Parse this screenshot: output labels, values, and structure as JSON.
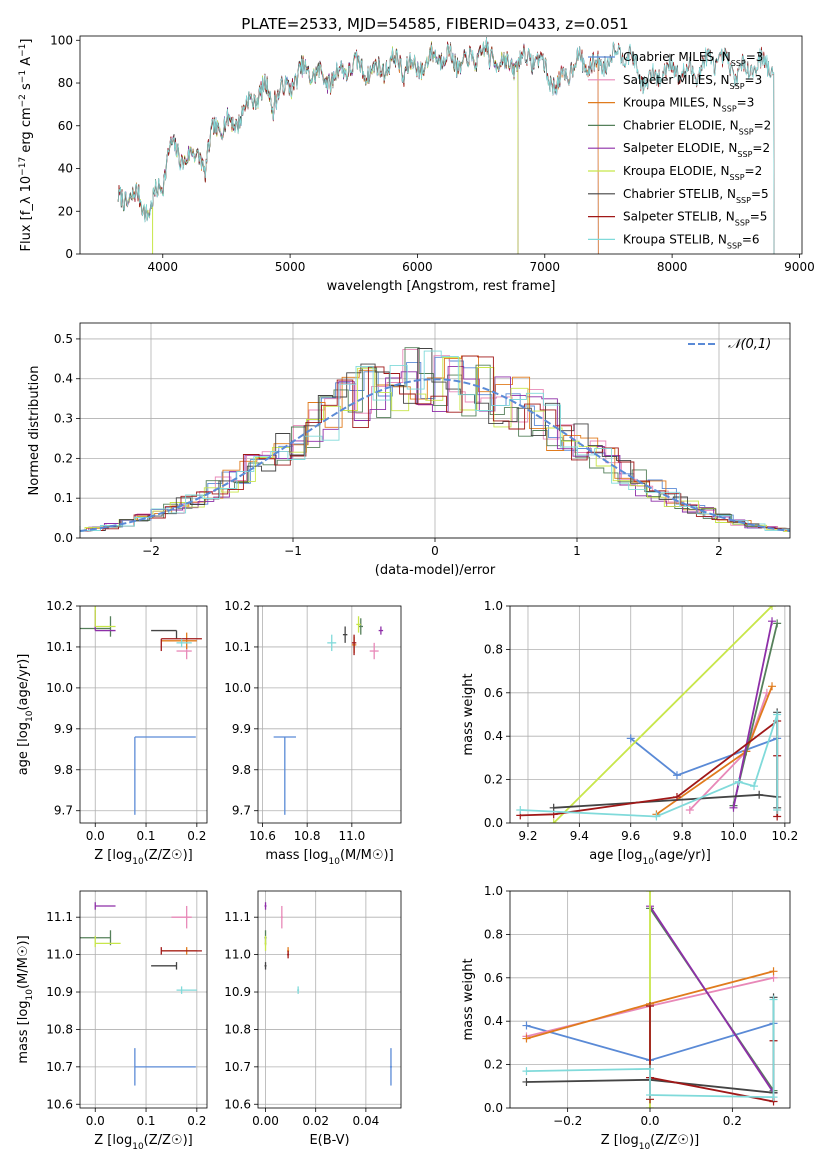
{
  "figure": {
    "title": "PLATE=2533, MJD=54585, FIBERID=0433, z=0.051"
  },
  "chart_data": [
    {
      "id": "spectrum",
      "type": "line",
      "xlabel": "wavelength [Angstrom, rest frame]",
      "ylabel": "Flux [f_λ 10^-17 erg cm^-2 s^-1 A^-1]",
      "xlim": [
        3350,
        9020
      ],
      "ylim": [
        0,
        102
      ],
      "xticks": [
        4000,
        5000,
        6000,
        7000,
        8000,
        9000
      ],
      "yticks": [
        0,
        20,
        40,
        60,
        80,
        100
      ],
      "grid": false,
      "legend_position": "top-right",
      "series": [
        {
          "name": "Chabrier MILES, N_SSP=3",
          "color": "#5a8ad6",
          "x_end": 7420
        },
        {
          "name": "Salpeter MILES, N_SSP=3",
          "color": "#e888b8",
          "x_end": 7420
        },
        {
          "name": "Kroupa MILES, N_SSP=3",
          "color": "#e07b1d",
          "x_end": 7420
        },
        {
          "name": "Chabrier ELODIE, N_SSP=2",
          "color": "#55805a",
          "x_end": 6790
        },
        {
          "name": "Salpeter ELODIE, N_SSP=2",
          "color": "#8e2fa8",
          "x_end": 6790
        },
        {
          "name": "Kroupa ELODIE, N_SSP=2",
          "color": "#c8e64a",
          "x_end": 6790
        },
        {
          "name": "Chabrier STELIB, N_SSP=5",
          "color": "#444444",
          "x_end": 8800
        },
        {
          "name": "Salpeter STELIB, N_SSP=5",
          "color": "#a01818",
          "x_end": 8800
        },
        {
          "name": "Kroupa STELIB, N_SSP=6",
          "color": "#80dada",
          "x_end": 8800
        }
      ],
      "continuum": {
        "x": [
          3650,
          3800,
          3900,
          4000,
          4050,
          4150,
          4300,
          4330,
          4400,
          4600,
          4800,
          5000,
          5200,
          5400,
          5600,
          5800,
          5900,
          6000,
          6200,
          6500,
          6700,
          6870,
          7000,
          7100,
          7200,
          7400,
          7500,
          7650,
          7800,
          8000,
          8200,
          8400,
          8600,
          8800
        ],
        "y": [
          22,
          28,
          22,
          32,
          47,
          47,
          48,
          36,
          57,
          66,
          75,
          80,
          85,
          84,
          88,
          87,
          88,
          90,
          91,
          92,
          91,
          90,
          88,
          80,
          86,
          90,
          93,
          92,
          82,
          85,
          88,
          89,
          87,
          87
        ]
      }
    },
    {
      "id": "residuals",
      "type": "histogram",
      "xlabel": "(data-model)/error",
      "ylabel": "Normed distribution",
      "xlim": [
        -2.5,
        2.5
      ],
      "ylim": [
        0,
        0.54
      ],
      "xticks": [
        -2,
        -1,
        0,
        1,
        2
      ],
      "yticks": [
        0.0,
        0.1,
        0.2,
        0.3,
        0.4,
        0.5
      ],
      "grid": true,
      "legend_position": "top-right",
      "reference": {
        "name": "𝒩(0,1)",
        "color": "#5a8ad6",
        "style": "dashed"
      },
      "series_colors": [
        "#5a8ad6",
        "#e888b8",
        "#e07b1d",
        "#55805a",
        "#8e2fa8",
        "#c8e64a",
        "#444444",
        "#a01818",
        "#80dada"
      ]
    },
    {
      "id": "age_vs_Z",
      "type": "scatter",
      "xlabel": "Z [log10(Z/Z☉)]",
      "ylabel": "age [log10(age/yr)]",
      "xlim": [
        -0.03,
        0.22
      ],
      "ylim": [
        9.67,
        10.2
      ],
      "xticks": [
        0.0,
        0.1,
        0.2
      ],
      "yticks": [
        9.7,
        9.8,
        9.9,
        10.0,
        10.1,
        10.2
      ],
      "grid": true,
      "points": [
        {
          "x": 0.078,
          "y": 9.88,
          "xerr": [
            0,
            0.12
          ],
          "yerr": [
            0.19,
            0.0
          ],
          "color": "#5a8ad6"
        },
        {
          "x": 0.18,
          "y": 10.09,
          "xerr": [
            0.02,
            0.01
          ],
          "yerr": [
            0.02,
            0.02
          ],
          "color": "#e888b8"
        },
        {
          "x": 0.18,
          "y": 10.115,
          "xerr": [
            0.05,
            0.02
          ],
          "yerr": [
            0.02,
            0.02
          ],
          "color": "#e07b1d"
        },
        {
          "x": 0.03,
          "y": 10.145,
          "xerr": [
            0.06,
            0.0
          ],
          "yerr": [
            0.02,
            0.03
          ],
          "color": "#55805a"
        },
        {
          "x": 0.0,
          "y": 10.14,
          "xerr": [
            0.0,
            0.04
          ],
          "yerr": [
            0.0,
            0.05
          ],
          "color": "#8e2fa8"
        },
        {
          "x": 0.0,
          "y": 10.15,
          "xerr": [
            0.0,
            0.04
          ],
          "yerr": [
            0.0,
            0.06
          ],
          "color": "#c8e64a"
        },
        {
          "x": 0.16,
          "y": 10.14,
          "xerr": [
            0.05,
            0.0
          ],
          "yerr": [
            0.02,
            0.0
          ],
          "color": "#444444"
        },
        {
          "x": 0.13,
          "y": 10.12,
          "xerr": [
            0.0,
            0.08
          ],
          "yerr": [
            0.03,
            0.0
          ],
          "color": "#a01818"
        },
        {
          "x": 0.17,
          "y": 10.11,
          "xerr": [
            0.01,
            0.02
          ],
          "yerr": [
            0.01,
            0.01
          ],
          "color": "#80dada"
        }
      ]
    },
    {
      "id": "age_vs_mass",
      "type": "scatter",
      "xlabel": "mass [log10(M/M☉)]",
      "ylabel": "",
      "xlim": [
        10.58,
        11.22
      ],
      "ylim": [
        9.67,
        10.2
      ],
      "xticks": [
        10.6,
        10.8,
        11.0
      ],
      "yticks": [
        9.7,
        9.8,
        9.9,
        10.0,
        10.1,
        10.2
      ],
      "grid": true,
      "points": [
        {
          "x": 10.7,
          "y": 9.88,
          "xerr": [
            0.05,
            0.05
          ],
          "yerr": [
            0.19,
            0.0
          ],
          "color": "#5a8ad6"
        },
        {
          "x": 11.1,
          "y": 10.09,
          "xerr": [
            0.02,
            0.02
          ],
          "yerr": [
            0.02,
            0.02
          ],
          "color": "#e888b8"
        },
        {
          "x": 11.01,
          "y": 10.105,
          "xerr": [
            0.01,
            0.01
          ],
          "yerr": [
            0.02,
            0.02
          ],
          "color": "#e07b1d"
        },
        {
          "x": 11.04,
          "y": 10.15,
          "xerr": [
            0.01,
            0.01
          ],
          "yerr": [
            0.02,
            0.02
          ],
          "color": "#55805a"
        },
        {
          "x": 11.13,
          "y": 10.14,
          "xerr": [
            0.01,
            0.01
          ],
          "yerr": [
            0.01,
            0.01
          ],
          "color": "#8e2fa8"
        },
        {
          "x": 11.03,
          "y": 10.155,
          "xerr": [
            0.01,
            0.01
          ],
          "yerr": [
            0.02,
            0.02
          ],
          "color": "#c8e64a"
        },
        {
          "x": 10.97,
          "y": 10.13,
          "xerr": [
            0.01,
            0.01
          ],
          "yerr": [
            0.02,
            0.02
          ],
          "color": "#444444"
        },
        {
          "x": 11.01,
          "y": 10.11,
          "xerr": [
            0.01,
            0.01
          ],
          "yerr": [
            0.03,
            0.02
          ],
          "color": "#a01818"
        },
        {
          "x": 10.91,
          "y": 10.11,
          "xerr": [
            0.02,
            0.02
          ],
          "yerr": [
            0.02,
            0.02
          ],
          "color": "#80dada"
        }
      ]
    },
    {
      "id": "weight_vs_age",
      "type": "line",
      "xlabel": "age [log10(age/yr)]",
      "ylabel": "mass weight",
      "xlim": [
        9.13,
        10.22
      ],
      "ylim": [
        0,
        1.0
      ],
      "xticks": [
        9.2,
        9.4,
        9.6,
        9.8,
        10.0,
        10.2
      ],
      "yticks": [
        0.0,
        0.2,
        0.4,
        0.6,
        0.8,
        1.0
      ],
      "grid": true,
      "series": [
        {
          "color": "#5a8ad6",
          "x": [
            9.6,
            9.78,
            10.17
          ],
          "y": [
            0.39,
            0.22,
            0.39
          ]
        },
        {
          "color": "#e888b8",
          "x": [
            9.83,
            10.05,
            10.13
          ],
          "y": [
            0.06,
            0.33,
            0.6
          ]
        },
        {
          "color": "#e07b1d",
          "x": [
            9.7,
            10.05,
            10.15
          ],
          "y": [
            0.04,
            0.33,
            0.63
          ]
        },
        {
          "color": "#55805a",
          "x": [
            10.0,
            10.17
          ],
          "y": [
            0.08,
            0.92
          ]
        },
        {
          "color": "#8e2fa8",
          "x": [
            10.0,
            10.15
          ],
          "y": [
            0.07,
            0.93
          ]
        },
        {
          "color": "#c8e64a",
          "x": [
            9.3,
            10.15
          ],
          "y": [
            0.0,
            1.0
          ]
        },
        {
          "color": "#444444",
          "x": [
            9.3,
            10.1,
            10.17,
            10.17,
            10.17
          ],
          "y": [
            0.07,
            0.13,
            0.12,
            0.51,
            0.07
          ]
        },
        {
          "color": "#a01818",
          "x": [
            9.17,
            9.3,
            9.78,
            10.17,
            10.17,
            10.17
          ],
          "y": [
            0.035,
            0.04,
            0.12,
            0.47,
            0.31,
            0.03
          ]
        },
        {
          "color": "#80dada",
          "x": [
            9.17,
            9.7,
            10.02,
            10.08,
            10.17,
            10.17
          ],
          "y": [
            0.06,
            0.03,
            0.19,
            0.17,
            0.5,
            0.06
          ]
        }
      ]
    },
    {
      "id": "mass_vs_Z",
      "type": "scatter",
      "xlabel": "Z [log10(Z/Z☉)]",
      "ylabel": "mass [log10(M/M☉)]",
      "xlim": [
        -0.03,
        0.22
      ],
      "ylim": [
        10.59,
        11.17
      ],
      "xticks": [
        0.0,
        0.1,
        0.2
      ],
      "yticks": [
        10.6,
        10.7,
        10.8,
        10.9,
        11.0,
        11.1
      ],
      "grid": true,
      "points": [
        {
          "x": 0.078,
          "y": 10.7,
          "xerr": [
            0.0,
            0.12
          ],
          "yerr": [
            0.05,
            0.05
          ],
          "color": "#5a8ad6"
        },
        {
          "x": 0.18,
          "y": 11.1,
          "xerr": [
            0.03,
            0.01
          ],
          "yerr": [
            0.03,
            0.03
          ],
          "color": "#e888b8"
        },
        {
          "x": 0.18,
          "y": 11.01,
          "xerr": [
            0.05,
            0.02
          ],
          "yerr": [
            0.01,
            0.01
          ],
          "color": "#e07b1d"
        },
        {
          "x": 0.03,
          "y": 11.045,
          "xerr": [
            0.06,
            0.0
          ],
          "yerr": [
            0.02,
            0.02
          ],
          "color": "#55805a"
        },
        {
          "x": 0.0,
          "y": 11.13,
          "xerr": [
            0.0,
            0.04
          ],
          "yerr": [
            0.01,
            0.01
          ],
          "color": "#8e2fa8"
        },
        {
          "x": 0.0,
          "y": 11.03,
          "xerr": [
            0.0,
            0.05
          ],
          "yerr": [
            0.01,
            0.02
          ],
          "color": "#c8e64a"
        },
        {
          "x": 0.16,
          "y": 10.97,
          "xerr": [
            0.05,
            0.0
          ],
          "yerr": [
            0.01,
            0.01
          ],
          "color": "#444444"
        },
        {
          "x": 0.13,
          "y": 11.01,
          "xerr": [
            0.0,
            0.08
          ],
          "yerr": [
            0.01,
            0.01
          ],
          "color": "#a01818"
        },
        {
          "x": 0.17,
          "y": 10.905,
          "xerr": [
            0.01,
            0.03
          ],
          "yerr": [
            0.01,
            0.01
          ],
          "color": "#80dada"
        }
      ]
    },
    {
      "id": "mass_vs_EBV",
      "type": "scatter",
      "xlabel": "E(B-V)",
      "ylabel": "",
      "xlim": [
        -0.003,
        0.054
      ],
      "ylim": [
        10.59,
        11.17
      ],
      "xticks": [
        0.0,
        0.02,
        0.04
      ],
      "yticks": [
        10.6,
        10.7,
        10.8,
        10.9,
        11.0,
        11.1
      ],
      "grid": true,
      "points": [
        {
          "x": 0.05,
          "y": 10.7,
          "xerr": [
            0,
            0
          ],
          "yerr": [
            0.05,
            0.05
          ],
          "color": "#5a8ad6"
        },
        {
          "x": 0.0065,
          "y": 11.1,
          "xerr": [
            0,
            0
          ],
          "yerr": [
            0.03,
            0.03
          ],
          "color": "#e888b8"
        },
        {
          "x": 0.009,
          "y": 11.01,
          "xerr": [
            0,
            0
          ],
          "yerr": [
            0.01,
            0.01
          ],
          "color": "#e07b1d"
        },
        {
          "x": 0.0,
          "y": 11.045,
          "xerr": [
            0,
            0
          ],
          "yerr": [
            0.02,
            0.02
          ],
          "color": "#55805a"
        },
        {
          "x": 0.0,
          "y": 11.13,
          "xerr": [
            0,
            0
          ],
          "yerr": [
            0.01,
            0.01
          ],
          "color": "#8e2fa8"
        },
        {
          "x": 0.0,
          "y": 11.03,
          "xerr": [
            0,
            0
          ],
          "yerr": [
            0.02,
            0.02
          ],
          "color": "#c8e64a"
        },
        {
          "x": 0.0,
          "y": 10.97,
          "xerr": [
            0,
            0
          ],
          "yerr": [
            0.01,
            0.01
          ],
          "color": "#444444"
        },
        {
          "x": 0.009,
          "y": 11.0,
          "xerr": [
            0,
            0
          ],
          "yerr": [
            0.01,
            0.01
          ],
          "color": "#a01818"
        },
        {
          "x": 0.013,
          "y": 10.905,
          "xerr": [
            0,
            0
          ],
          "yerr": [
            0.01,
            0.01
          ],
          "color": "#80dada"
        }
      ]
    },
    {
      "id": "weight_vs_Z",
      "type": "line",
      "xlabel": "Z [log10(Z/Z☉)]",
      "ylabel": "mass weight",
      "xlim": [
        -0.34,
        0.34
      ],
      "ylim": [
        0,
        1.0
      ],
      "xticks": [
        -0.2,
        0.0,
        0.2
      ],
      "yticks": [
        0.0,
        0.2,
        0.4,
        0.6,
        0.8,
        1.0
      ],
      "grid": true,
      "series": [
        {
          "color": "#5a8ad6",
          "x": [
            -0.3,
            0.0,
            0.3
          ],
          "y": [
            0.38,
            0.22,
            0.39
          ]
        },
        {
          "color": "#e888b8",
          "x": [
            -0.3,
            0.0,
            0.3
          ],
          "y": [
            0.33,
            0.47,
            0.6
          ]
        },
        {
          "color": "#e07b1d",
          "x": [
            -0.3,
            0.0,
            0.3
          ],
          "y": [
            0.32,
            0.48,
            0.63
          ]
        },
        {
          "color": "#55805a",
          "x": [
            0.0,
            0.3
          ],
          "y": [
            0.92,
            0.08
          ]
        },
        {
          "color": "#8e2fa8",
          "x": [
            0.0,
            0.3
          ],
          "y": [
            0.93,
            0.07
          ]
        },
        {
          "color": "#c8e64a",
          "x": [
            0.0,
            0.0
          ],
          "y": [
            1.0,
            0.0
          ]
        },
        {
          "color": "#444444",
          "x": [
            -0.3,
            0.0,
            0.3,
            0.3,
            0.3
          ],
          "y": [
            0.12,
            0.13,
            0.07,
            0.51,
            0.07
          ]
        },
        {
          "color": "#a01818",
          "x": [
            0.0,
            0.0,
            0.0,
            0.3,
            0.3
          ],
          "y": [
            0.47,
            0.04,
            0.14,
            0.03,
            0.31
          ]
        },
        {
          "color": "#80dada",
          "x": [
            -0.3,
            0.0,
            0.0,
            0.3,
            0.3
          ],
          "y": [
            0.17,
            0.18,
            0.06,
            0.05,
            0.5
          ]
        }
      ]
    }
  ]
}
